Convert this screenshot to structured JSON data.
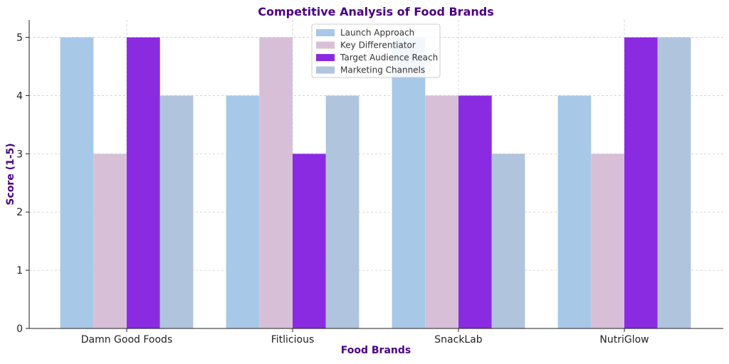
{
  "chart_data": {
    "type": "bar",
    "title": "Competitive Analysis of Food Brands",
    "xlabel": "Food Brands",
    "ylabel": "Score (1-5)",
    "categories": [
      "Damn Good Foods",
      "Fitlicious",
      "SnackLab",
      "NutriGlow"
    ],
    "series": [
      {
        "name": "Launch Approach",
        "values": [
          5,
          4,
          5,
          4
        ],
        "color": "#a8c8e8"
      },
      {
        "name": "Key Differentiator",
        "values": [
          3,
          5,
          4,
          3
        ],
        "color": "#d8bfd8"
      },
      {
        "name": "Target Audience Reach",
        "values": [
          5,
          3,
          4,
          5
        ],
        "color": "#8a2be2"
      },
      {
        "name": "Marketing Channels",
        "values": [
          4,
          4,
          3,
          5
        ],
        "color": "#b0c4de"
      }
    ],
    "ylim": [
      0,
      5.3
    ],
    "yticks": [
      0,
      1,
      2,
      3,
      4,
      5
    ],
    "grid": true,
    "legend_position": "top-center",
    "title_color": "#4b0082",
    "axis_label_color": "#4b0082"
  }
}
